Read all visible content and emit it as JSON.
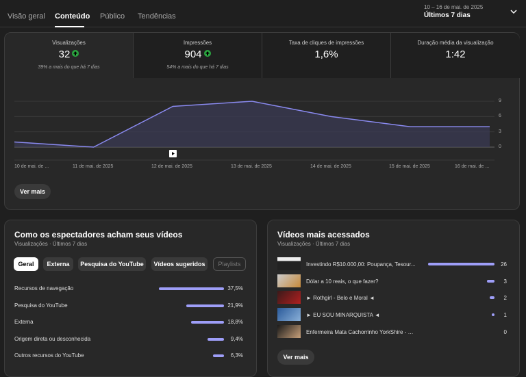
{
  "tabs": [
    "Visão geral",
    "Conteúdo",
    "Público",
    "Tendências"
  ],
  "date_range": "10 – 16 de mai. de 2025",
  "period": "Últimos 7 dias",
  "metrics": [
    {
      "title": "Visualizações",
      "value": "32",
      "sub": "39% a mais do que há 7 dias",
      "trend": "up"
    },
    {
      "title": "Impressões",
      "value": "904",
      "sub": "54% a mais do que há 7 dias",
      "trend": "up"
    },
    {
      "title": "Taxa de cliques de impressões",
      "value": "1,6%"
    },
    {
      "title": "Duração média da visualização",
      "value": "1:42"
    }
  ],
  "chart_data": {
    "type": "area",
    "x": [
      "10 de mai. de ...",
      "11 de mai. de 2025",
      "12 de mai. de 2025",
      "13 de mai. de 2025",
      "14 de mai. de 2025",
      "15 de mai. de 2025",
      "16 de mai. de ..."
    ],
    "values": [
      1,
      0,
      8,
      9,
      6,
      4,
      4
    ],
    "yticks": [
      "9",
      "6",
      "3",
      "0"
    ],
    "ylim": [
      0,
      9
    ],
    "colors": {
      "line": "#8a8af0",
      "fill": "#3a3a55"
    }
  },
  "ver_mais_label": "Ver mais",
  "sources": {
    "title": "Como os espectadores acham seus vídeos",
    "subtitle": "Visualizações · Últimos 7 dias",
    "chips": [
      "Geral",
      "Externa",
      "Pesquisa do YouTube",
      "Vídeos sugeridos",
      "Playlists"
    ],
    "items": [
      {
        "label": "Recursos de navegação",
        "value": "37,5%",
        "pct": 37.5
      },
      {
        "label": "Pesquisa do YouTube",
        "value": "21,9%",
        "pct": 21.9
      },
      {
        "label": "Externa",
        "value": "18,8%",
        "pct": 18.8
      },
      {
        "label": "Origem direta ou desconhecida",
        "value": "9,4%",
        "pct": 9.4
      },
      {
        "label": "Outros recursos do YouTube",
        "value": "6,3%",
        "pct": 6.3
      }
    ]
  },
  "top_videos": {
    "title": "Vídeos mais acessados",
    "subtitle": "Visualizações · Últimos 7 dias",
    "items": [
      {
        "title": "Investindo R$10.000,00: Poupança, Tesour...",
        "views": "26",
        "n": 26
      },
      {
        "title": "Dólar a 10 reais, o que fazer?",
        "views": "3",
        "n": 3
      },
      {
        "title": "► Rothgirl - Belo e Moral ◄",
        "views": "2",
        "n": 2
      },
      {
        "title": "► EU SOU MINARQUISTA ◄",
        "views": "1",
        "n": 1
      },
      {
        "title": "Enfermeira Mata Cachorrinho YorkShire - C...",
        "views": "0",
        "n": 0
      }
    ],
    "button": "Ver mais"
  }
}
